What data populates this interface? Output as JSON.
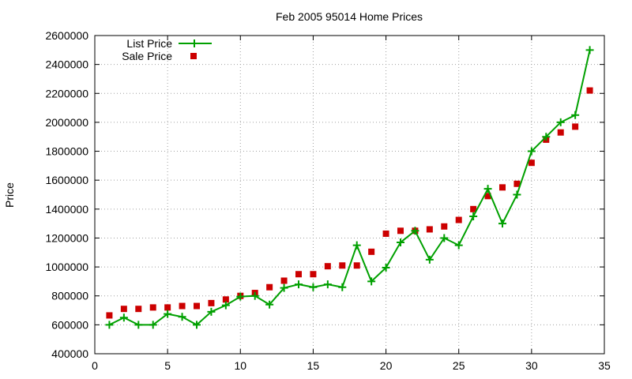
{
  "chart_data": {
    "type": "line",
    "title": "Feb 2005 95014 Home Prices",
    "xlabel": "",
    "ylabel": "Price",
    "xlim": [
      0,
      35
    ],
    "ylim": [
      400000,
      2600000
    ],
    "x_ticks": [
      0,
      5,
      10,
      15,
      20,
      25,
      30,
      35
    ],
    "y_ticks": [
      400000,
      600000,
      800000,
      1000000,
      1200000,
      1400000,
      1600000,
      1800000,
      2000000,
      2200000,
      2400000,
      2600000
    ],
    "x_tick_labels": [
      "0",
      "5",
      "10",
      "15",
      "20",
      "25",
      "30",
      "35"
    ],
    "y_tick_labels": [
      "400000",
      "600000",
      "800000",
      "1000000",
      "1200000",
      "1400000",
      "1600000",
      "1800000",
      "2000000",
      "2200000",
      "2400000",
      "2600000"
    ],
    "grid": true,
    "legend_position": "top-left",
    "x": [
      1,
      2,
      3,
      4,
      5,
      6,
      7,
      8,
      9,
      10,
      11,
      12,
      13,
      14,
      15,
      16,
      17,
      18,
      19,
      20,
      21,
      22,
      23,
      24,
      25,
      26,
      27,
      28,
      29,
      30,
      31,
      32,
      33,
      34
    ],
    "series": [
      {
        "name": "List Price",
        "style": "line+cross",
        "color": "#00a000",
        "values": [
          600000,
          650000,
          600000,
          600000,
          675000,
          655000,
          600000,
          690000,
          735000,
          795000,
          800000,
          740000,
          855000,
          880000,
          860000,
          880000,
          860000,
          1150000,
          900000,
          995000,
          1170000,
          1250000,
          1050000,
          1200000,
          1150000,
          1350000,
          1540000,
          1300000,
          1500000,
          1800000,
          1900000,
          2000000,
          2050000,
          2500000
        ]
      },
      {
        "name": "Sale Price",
        "style": "square-points",
        "color": "#cc0000",
        "values": [
          665000,
          710000,
          710000,
          720000,
          720000,
          730000,
          730000,
          750000,
          775000,
          800000,
          820000,
          860000,
          905000,
          950000,
          950000,
          1005000,
          1010000,
          1010000,
          1105000,
          1230000,
          1250000,
          1250000,
          1260000,
          1280000,
          1325000,
          1400000,
          1490000,
          1550000,
          1575000,
          1720000,
          1880000,
          1930000,
          1970000,
          2220000
        ]
      }
    ]
  }
}
